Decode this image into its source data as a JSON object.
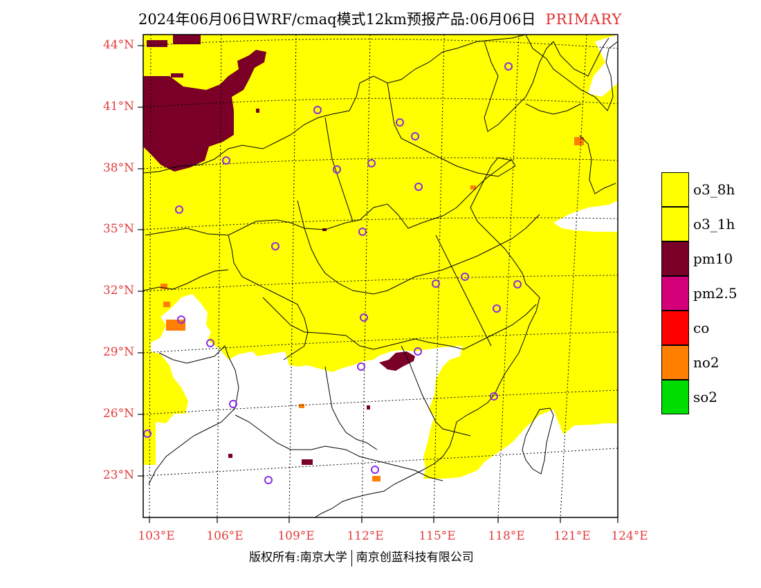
{
  "title": {
    "main": "2024年06月06日WRF/cmaq模式12km预报产品:06月06日",
    "tag": "PRIMARY"
  },
  "map": {
    "y_ticks": [
      "44°N",
      "41°N",
      "38°N",
      "35°N",
      "32°N",
      "29°N",
      "26°N",
      "23°N"
    ],
    "x_ticks": [
      "103°E",
      "106°E",
      "109°E",
      "112°E",
      "115°E",
      "118°E",
      "121°E",
      "124°E"
    ]
  },
  "legend": {
    "items": [
      {
        "label": "o3_8h",
        "color": "#ffff00"
      },
      {
        "label": "o3_1h",
        "color": "#ffff00"
      },
      {
        "label": "pm10",
        "color": "#7a0028"
      },
      {
        "label": "pm2.5",
        "color": "#d4007a"
      },
      {
        "label": "co",
        "color": "#ff0000"
      },
      {
        "label": "no2",
        "color": "#ff7f00"
      },
      {
        "label": "so2",
        "color": "#00dd00"
      }
    ]
  },
  "colors": {
    "o3": "#ffff00",
    "pm10": "#7a0028",
    "no2": "#ff7f00",
    "tick_label": "#e33a3a",
    "city_marker": "#8a2be2"
  },
  "footer": {
    "owner1": "版权所有:南京大学",
    "owner2": "南京创蓝科技有限公司"
  }
}
